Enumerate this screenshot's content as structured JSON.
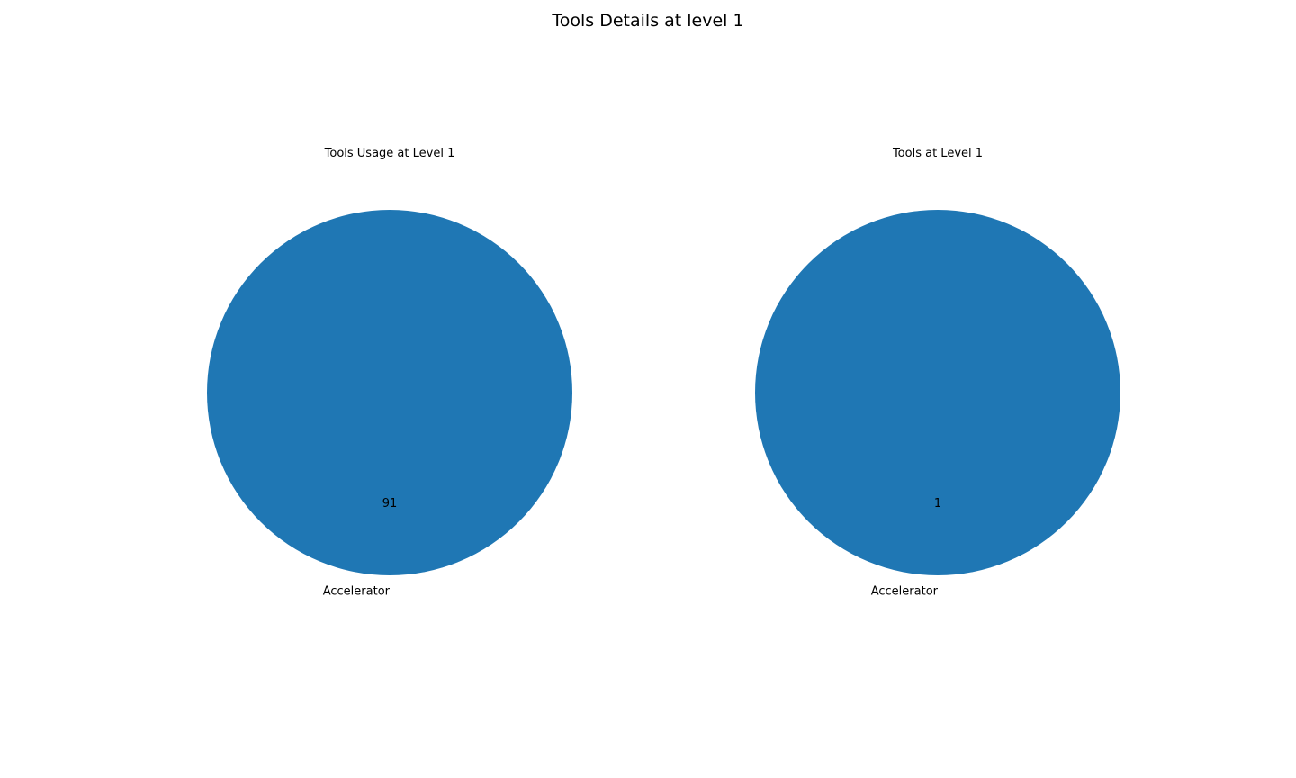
{
  "figure": {
    "suptitle": "Tools Details at level 1"
  },
  "chart_data": [
    {
      "type": "pie",
      "title": "Tools Usage at Level 1",
      "slices": [
        {
          "label": "Accelerator",
          "value": 91,
          "color": "#1f77b4"
        }
      ],
      "value_labels_shown": true
    },
    {
      "type": "pie",
      "title": "Tools at Level 1",
      "slices": [
        {
          "label": "Accelerator",
          "value": 1,
          "color": "#1f77b4"
        }
      ],
      "value_labels_shown": true
    }
  ]
}
